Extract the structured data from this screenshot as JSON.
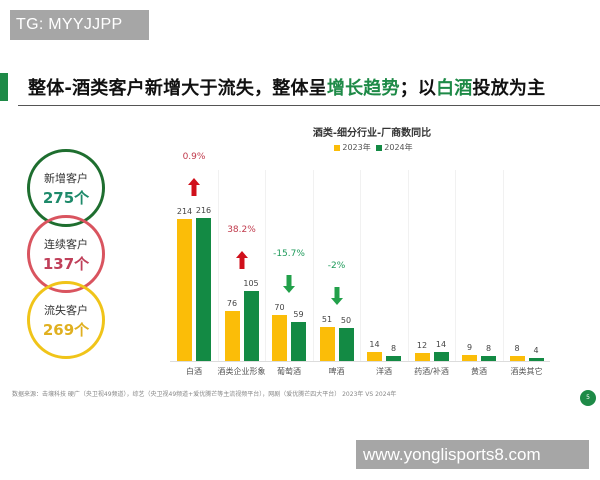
{
  "watermarks": {
    "top": "TG: MYYJJPP",
    "bottom": "www.yonglisports8.com"
  },
  "header": {
    "title_part1": "整体-酒类客户新增大于流失，整体呈",
    "title_hl1": "增长趋势",
    "title_part2": "；以",
    "title_hl2": "白酒",
    "title_part3": "投放为主",
    "accent_color": "#1e8a47"
  },
  "summary": [
    {
      "label": "新增客户",
      "value": "275个",
      "color": "#1e6e2f",
      "num_color": "#1e8a6a"
    },
    {
      "label": "连续客户",
      "value": "137个",
      "color": "#d9545f",
      "num_color": "#c0405a"
    },
    {
      "label": "流失客户",
      "value": "269个",
      "color": "#f0c419",
      "num_color": "#e0b020"
    }
  ],
  "chart_data": {
    "type": "bar",
    "title": "酒类-细分行业-厂商数同比",
    "categories": [
      "白酒",
      "酒类企业形象",
      "葡萄酒",
      "啤酒",
      "洋酒",
      "药酒/补酒",
      "黄酒",
      "酒类其它"
    ],
    "series": [
      {
        "name": "2023年",
        "color": "#fbbd08",
        "values": [
          214,
          76,
          70,
          51,
          14,
          12,
          9,
          8
        ]
      },
      {
        "name": "2024年",
        "color": "#138a44",
        "values": [
          216,
          105,
          59,
          50,
          8,
          14,
          8,
          4
        ]
      }
    ],
    "annotations": [
      {
        "category": "白酒",
        "text": "0.9%",
        "direction": "up",
        "color": "#c0394b"
      },
      {
        "category": "酒类企业形象",
        "text": "38.2%",
        "direction": "up",
        "color": "#c0394b"
      },
      {
        "category": "葡萄酒",
        "text": "-15.7%",
        "direction": "down",
        "color": "#1e9a5a"
      },
      {
        "category": "啤酒",
        "text": "-2%",
        "direction": "down",
        "color": "#1e9a5a"
      }
    ],
    "legend_position": "top",
    "grid": false,
    "xlabel": "",
    "ylabel": ""
  },
  "footer": {
    "source": "数据来源：击壤科技  硬广（央卫视49频道），综艺（央卫视49频道+爱优腾芒等主流视频平台），网剧（爱优腾芒四大平台）  2023年 VS 2024年",
    "page": "5"
  }
}
